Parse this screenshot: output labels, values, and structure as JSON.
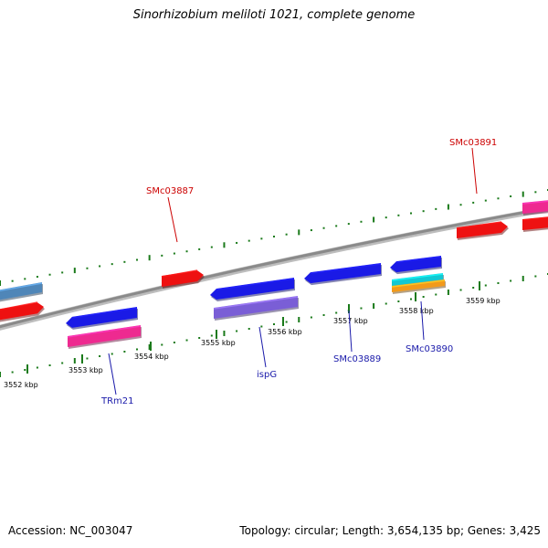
{
  "title": "Sinorhizobium meliloti 1021, complete genome",
  "footer": {
    "accession": "Accession: NC_003047",
    "topology": "Topology: circular; Length: 3,654,135 bp; Genes: 3,425"
  },
  "colors": {
    "backbone": "#8a8a8a",
    "tick": "#1a7a1a",
    "label_forward": "#cc0000",
    "label_reverse": "#1a1aaa"
  },
  "ticks": [
    {
      "label": "3552 kbp"
    },
    {
      "label": "3553 kbp"
    },
    {
      "label": "3554 kbp"
    },
    {
      "label": "3555 kbp"
    },
    {
      "label": "3556 kbp"
    },
    {
      "label": "3557 kbp"
    },
    {
      "label": "3558 kbp"
    },
    {
      "label": "3559 kbp"
    }
  ],
  "gene_labels": [
    {
      "name": "SMc03887",
      "strand": "forward"
    },
    {
      "name": "SMc03891",
      "strand": "forward"
    },
    {
      "name": "TRm21",
      "strand": "reverse"
    },
    {
      "name": "ispG",
      "strand": "reverse"
    },
    {
      "name": "SMc03889",
      "strand": "reverse"
    },
    {
      "name": "SMc03890",
      "strand": "reverse"
    }
  ],
  "features": [
    {
      "name": "left-blue-feature",
      "color": "#4f86b8",
      "dir": "left"
    },
    {
      "name": "left-red-feature",
      "color": "#ee1111",
      "dir": "right"
    },
    {
      "name": "trm21-cds",
      "color": "#1a1ae6",
      "dir": "left"
    },
    {
      "name": "trm21-gene",
      "color": "#ee2a90",
      "dir": "none"
    },
    {
      "name": "smc03887-cds",
      "color": "#ee1111",
      "dir": "right"
    },
    {
      "name": "ispg-cds",
      "color": "#1a1ae6",
      "dir": "left"
    },
    {
      "name": "ispg-gene",
      "color": "#7a5ed6",
      "dir": "none"
    },
    {
      "name": "smc03889-cds",
      "color": "#1a1ae6",
      "dir": "left"
    },
    {
      "name": "smc03890-cds",
      "color": "#1a1ae6",
      "dir": "left"
    },
    {
      "name": "smc03890-misc-1",
      "color": "#12c8d2",
      "dir": "none"
    },
    {
      "name": "smc03890-misc-2",
      "color": "#f29a1a",
      "dir": "none"
    },
    {
      "name": "smc03891-cds",
      "color": "#ee1111",
      "dir": "right"
    },
    {
      "name": "right-red-feature",
      "color": "#ee1111",
      "dir": "none"
    },
    {
      "name": "right-pink-feature",
      "color": "#ee2a90",
      "dir": "none"
    }
  ]
}
